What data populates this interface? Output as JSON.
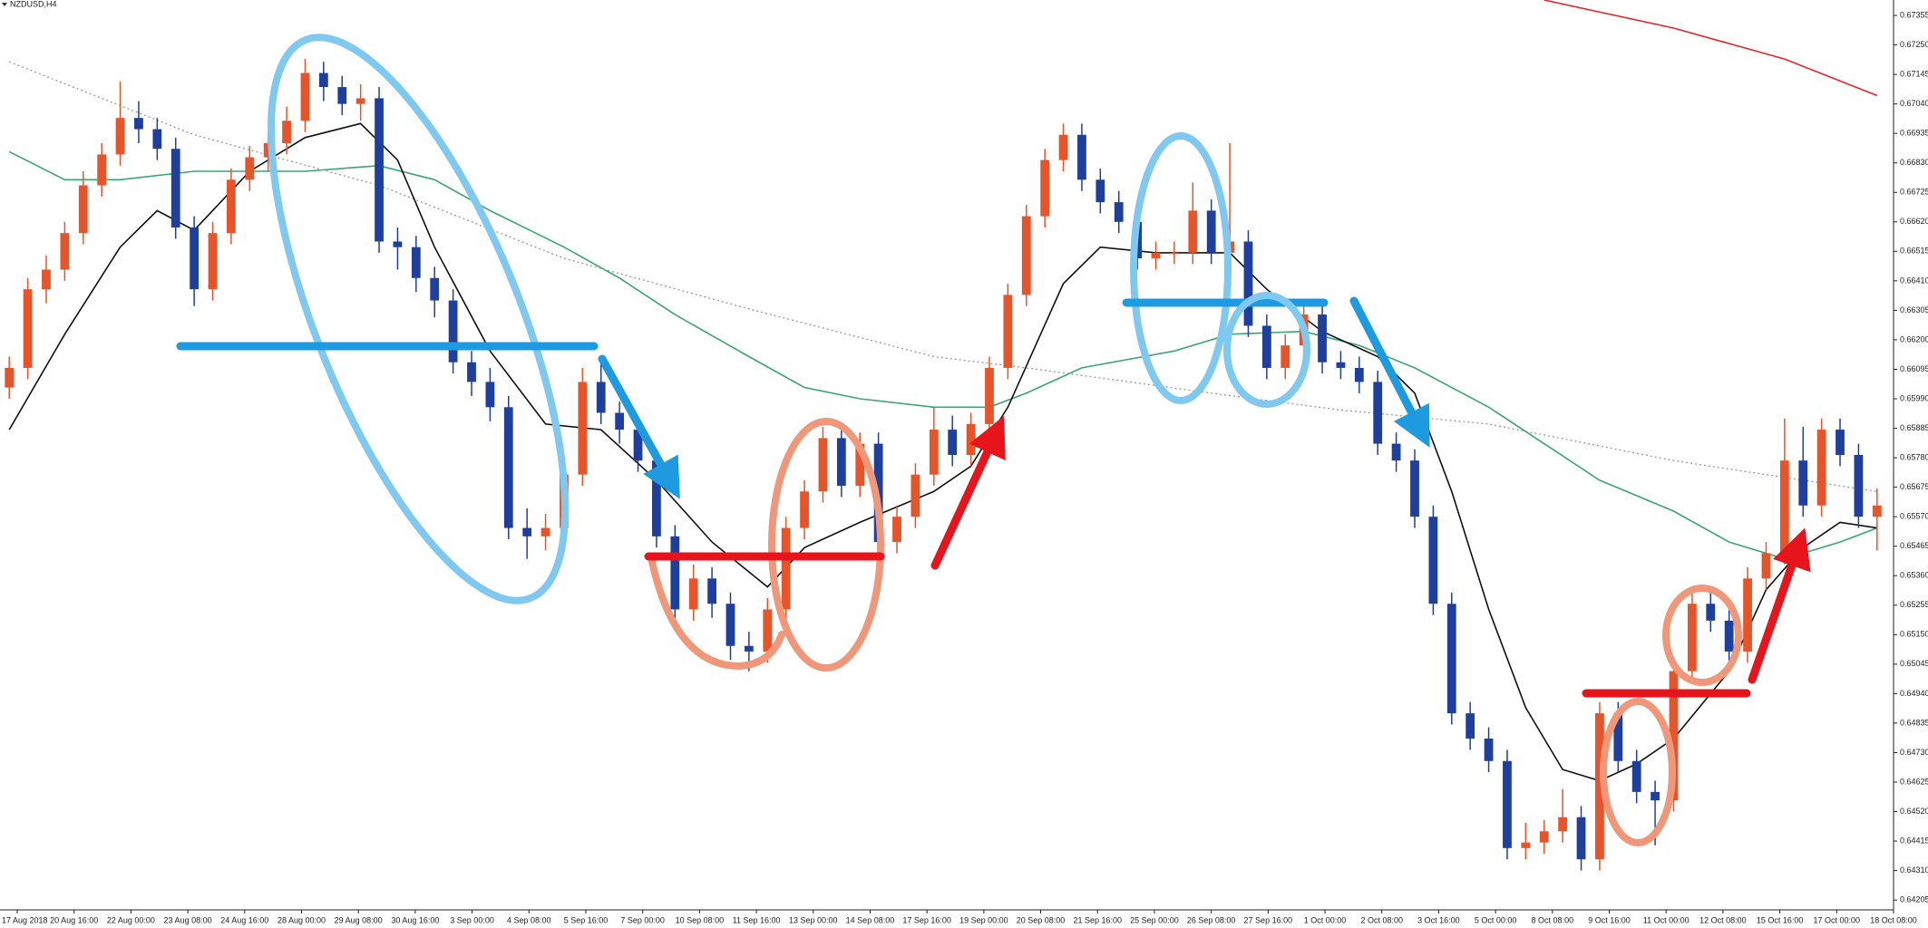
{
  "chart_data": {
    "type": "candlestick",
    "title": "NZDUSD,H4",
    "up_color": "#e8542a",
    "down_color": "#1f3f9e",
    "ylim": [
      0.6417,
      0.6741
    ],
    "yticks": [
      0.67355,
      {
        "value": 0.6725,
        "label": "0.67250"
      },
      0.67145,
      {
        "value": 0.6704,
        "label": "0.67040"
      },
      0.66935,
      {
        "value": 0.6683,
        "label": "0.66830"
      },
      0.66725,
      {
        "value": 0.6662,
        "label": "0.66620"
      },
      0.66515,
      {
        "value": 0.6641,
        "label": "0.66410"
      },
      0.66305,
      {
        "value": 0.662,
        "label": "0.66200"
      },
      0.66095,
      {
        "value": 0.6599,
        "label": "0.65990"
      },
      0.65885,
      {
        "value": 0.6578,
        "label": "0.65780"
      },
      0.65675,
      {
        "value": 0.6557,
        "label": "0.65570"
      },
      0.65465,
      {
        "value": 0.6536,
        "label": "0.65360"
      },
      0.65255,
      {
        "value": 0.6515,
        "label": "0.65150"
      },
      0.65045,
      {
        "value": 0.6494,
        "label": "0.64940"
      },
      0.64835,
      {
        "value": 0.6473,
        "label": "0.64730"
      },
      0.64625,
      {
        "value": 0.6452,
        "label": "0.64520"
      },
      0.64415,
      {
        "value": 0.6431,
        "label": "0.64310"
      },
      0.64205
    ],
    "xlabels": [
      "17 Aug 2018",
      "20 Aug 16:00",
      "22 Aug 00:00",
      "23 Aug 08:00",
      "24 Aug 16:00",
      "28 Aug 00:00",
      "29 Aug 08:00",
      "30 Aug 16:00",
      "3 Sep 00:00",
      "4 Sep 08:00",
      "5 Sep 16:00",
      "7 Sep 00:00",
      "10 Sep 08:00",
      "11 Sep 16:00",
      "13 Sep 00:00",
      "14 Sep 08:00",
      "17 Sep 16:00",
      "19 Sep 00:00",
      "20 Sep 08:00",
      "21 Sep 16:00",
      "25 Sep 00:00",
      "26 Sep 08:00",
      "27 Sep 16:00",
      "1 Oct 00:00",
      "2 Oct 08:00",
      "3 Oct 16:00",
      "5 Oct 00:00",
      "8 Oct 08:00",
      "9 Oct 16:00",
      "11 Oct 00:00",
      "12 Oct 08:00",
      "15 Oct 16:00",
      "17 Oct 00:00",
      "18 Oct 08:00"
    ],
    "candles": [
      [
        0.6603,
        0.6614,
        0.6599,
        0.661
      ],
      [
        0.661,
        0.6642,
        0.6606,
        0.6638
      ],
      [
        0.6638,
        0.665,
        0.6633,
        0.6645
      ],
      [
        0.6645,
        0.6662,
        0.6641,
        0.6658
      ],
      [
        0.6658,
        0.668,
        0.6654,
        0.6675
      ],
      [
        0.6675,
        0.669,
        0.6671,
        0.6686
      ],
      [
        0.6686,
        0.6712,
        0.6682,
        0.6699
      ],
      [
        0.6699,
        0.6705,
        0.669,
        0.6695
      ],
      [
        0.6695,
        0.6699,
        0.6684,
        0.6688
      ],
      [
        0.6688,
        0.6692,
        0.6656,
        0.666
      ],
      [
        0.666,
        0.6664,
        0.6632,
        0.6638
      ],
      [
        0.6638,
        0.6662,
        0.6634,
        0.6658
      ],
      [
        0.6658,
        0.6681,
        0.6654,
        0.6677
      ],
      [
        0.6677,
        0.6689,
        0.6673,
        0.6685
      ],
      [
        0.6685,
        0.6694,
        0.668,
        0.669
      ],
      [
        0.669,
        0.6703,
        0.6686,
        0.6698
      ],
      [
        0.6698,
        0.672,
        0.6694,
        0.6715
      ],
      [
        0.6715,
        0.6719,
        0.6705,
        0.671
      ],
      [
        0.671,
        0.6714,
        0.67,
        0.6704
      ],
      [
        0.6704,
        0.6711,
        0.6698,
        0.6706
      ],
      [
        0.6706,
        0.671,
        0.6651,
        0.6655
      ],
      [
        0.6655,
        0.666,
        0.6645,
        0.6653
      ],
      [
        0.6653,
        0.6657,
        0.6637,
        0.6642
      ],
      [
        0.6642,
        0.6646,
        0.6628,
        0.6634
      ],
      [
        0.6634,
        0.6638,
        0.6608,
        0.6612
      ],
      [
        0.6612,
        0.6616,
        0.66,
        0.6605
      ],
      [
        0.6605,
        0.661,
        0.6591,
        0.6596
      ],
      [
        0.6596,
        0.66,
        0.6549,
        0.6553
      ],
      [
        0.6553,
        0.656,
        0.6542,
        0.655
      ],
      [
        0.655,
        0.6558,
        0.6545,
        0.6553
      ],
      [
        0.6553,
        0.6576,
        0.6549,
        0.6572
      ],
      [
        0.6572,
        0.661,
        0.6568,
        0.6605
      ],
      [
        0.6605,
        0.6612,
        0.659,
        0.6594
      ],
      [
        0.6594,
        0.6598,
        0.6583,
        0.6588
      ],
      [
        0.6588,
        0.6592,
        0.6573,
        0.6577
      ],
      [
        0.6577,
        0.6581,
        0.6546,
        0.655
      ],
      [
        0.655,
        0.6554,
        0.6519,
        0.6524
      ],
      [
        0.6524,
        0.654,
        0.652,
        0.6535
      ],
      [
        0.6535,
        0.6539,
        0.6521,
        0.6526
      ],
      [
        0.6526,
        0.653,
        0.6506,
        0.6511
      ],
      [
        0.6511,
        0.6516,
        0.6502,
        0.6509
      ],
      [
        0.6509,
        0.6528,
        0.6505,
        0.6524
      ],
      [
        0.6524,
        0.6557,
        0.652,
        0.6553
      ],
      [
        0.6553,
        0.657,
        0.6549,
        0.6566
      ],
      [
        0.6566,
        0.6589,
        0.6562,
        0.6585
      ],
      [
        0.6585,
        0.659,
        0.6564,
        0.6568
      ],
      [
        0.6568,
        0.6587,
        0.6564,
        0.6583
      ],
      [
        0.6583,
        0.6587,
        0.6544,
        0.6548
      ],
      [
        0.6548,
        0.6561,
        0.6544,
        0.6557
      ],
      [
        0.6557,
        0.6576,
        0.6553,
        0.6572
      ],
      [
        0.6572,
        0.6596,
        0.6568,
        0.6588
      ],
      [
        0.6588,
        0.6593,
        0.6575,
        0.6579
      ],
      [
        0.6579,
        0.6594,
        0.6575,
        0.659
      ],
      [
        0.659,
        0.6614,
        0.6586,
        0.661
      ],
      [
        0.661,
        0.664,
        0.6606,
        0.6636
      ],
      [
        0.6636,
        0.6668,
        0.6632,
        0.6664
      ],
      [
        0.6664,
        0.6688,
        0.666,
        0.6684
      ],
      [
        0.6684,
        0.6697,
        0.668,
        0.6693
      ],
      [
        0.6693,
        0.6697,
        0.6673,
        0.6677
      ],
      [
        0.6677,
        0.6681,
        0.6665,
        0.6669
      ],
      [
        0.6669,
        0.6673,
        0.6658,
        0.6662
      ],
      [
        0.6662,
        0.6666,
        0.6645,
        0.6649
      ],
      [
        0.6649,
        0.6655,
        0.6645,
        0.6651
      ],
      [
        0.6651,
        0.6655,
        0.6647,
        0.6651
      ],
      [
        0.6651,
        0.6676,
        0.6647,
        0.6666
      ],
      [
        0.6666,
        0.667,
        0.6647,
        0.6651
      ],
      [
        0.6651,
        0.669,
        0.6647,
        0.6655
      ],
      [
        0.6655,
        0.6659,
        0.6621,
        0.6625
      ],
      [
        0.6625,
        0.6629,
        0.6606,
        0.661
      ],
      [
        0.661,
        0.6622,
        0.6606,
        0.6618
      ],
      [
        0.6618,
        0.6633,
        0.6614,
        0.6629
      ],
      [
        0.6629,
        0.6633,
        0.6608,
        0.6612
      ],
      [
        0.6612,
        0.6616,
        0.6606,
        0.661
      ],
      [
        0.661,
        0.6614,
        0.6601,
        0.6605
      ],
      [
        0.6605,
        0.6609,
        0.6579,
        0.6583
      ],
      [
        0.6583,
        0.6587,
        0.6573,
        0.6577
      ],
      [
        0.6577,
        0.6581,
        0.6553,
        0.6557
      ],
      [
        0.6557,
        0.6561,
        0.6522,
        0.6526
      ],
      [
        0.6526,
        0.653,
        0.6483,
        0.6487
      ],
      [
        0.6487,
        0.6491,
        0.6474,
        0.6478
      ],
      [
        0.6478,
        0.6482,
        0.6466,
        0.647
      ],
      [
        0.647,
        0.6474,
        0.6435,
        0.6439
      ],
      [
        0.6439,
        0.6448,
        0.6435,
        0.6441
      ],
      [
        0.6441,
        0.6449,
        0.6437,
        0.6445
      ],
      [
        0.6445,
        0.646,
        0.6441,
        0.645
      ],
      [
        0.645,
        0.6454,
        0.6431,
        0.6435
      ],
      [
        0.6435,
        0.6491,
        0.6431,
        0.6487
      ],
      [
        0.6487,
        0.6491,
        0.6466,
        0.647
      ],
      [
        0.647,
        0.6474,
        0.6455,
        0.6459
      ],
      [
        0.6459,
        0.6463,
        0.644,
        0.6456
      ],
      [
        0.6456,
        0.6506,
        0.6452,
        0.6502
      ],
      [
        0.6502,
        0.653,
        0.6498,
        0.6526
      ],
      [
        0.6526,
        0.653,
        0.6516,
        0.652
      ],
      [
        0.652,
        0.6524,
        0.6505,
        0.6509
      ],
      [
        0.6509,
        0.6539,
        0.6505,
        0.6535
      ],
      [
        0.6535,
        0.6548,
        0.6531,
        0.6544
      ],
      [
        0.6544,
        0.6592,
        0.654,
        0.6577
      ],
      [
        0.6577,
        0.6589,
        0.6557,
        0.6561
      ],
      [
        0.6561,
        0.6592,
        0.6557,
        0.6588
      ],
      [
        0.6588,
        0.6592,
        0.6575,
        0.6579
      ],
      [
        0.6579,
        0.6583,
        0.6553,
        0.6557
      ],
      [
        0.6557,
        0.6567,
        0.6545,
        0.6561
      ]
    ],
    "lines": [
      {
        "color": "#3aa673",
        "dashed": false,
        "x": [
          0,
          3,
          6,
          10,
          13,
          16,
          20,
          23,
          26,
          30,
          33,
          36,
          40,
          43,
          46,
          50,
          53,
          55,
          58,
          63,
          66,
          70,
          73,
          76,
          80,
          83,
          86,
          90,
          93,
          96,
          99,
          101
        ],
        "values": [
          0.6687,
          0.6677,
          0.6677,
          0.668,
          0.668,
          0.668,
          0.6682,
          0.6677,
          0.6666,
          0.6653,
          0.6642,
          0.6629,
          0.6614,
          0.6603,
          0.6599,
          0.6596,
          0.6596,
          0.6601,
          0.661,
          0.6616,
          0.6622,
          0.6623,
          0.6618,
          0.661,
          0.6596,
          0.6583,
          0.657,
          0.6559,
          0.6548,
          0.6542,
          0.6548,
          0.6553
        ]
      },
      {
        "color": "#999999",
        "dashed": true,
        "x": [
          0,
          10,
          20,
          30,
          40,
          50,
          55,
          65,
          72,
          80,
          90,
          101
        ],
        "values": [
          0.6719,
          0.6693,
          0.6675,
          0.6649,
          0.6631,
          0.6614,
          0.661,
          0.6601,
          0.6595,
          0.659,
          0.6577,
          0.6566
        ]
      },
      {
        "color": "#111111",
        "dashed": false,
        "x": [
          0,
          3,
          6,
          8,
          10,
          13,
          16,
          19,
          21,
          23,
          26,
          29,
          32,
          35,
          38,
          41,
          43,
          46,
          50,
          52,
          54,
          57,
          59,
          62,
          66,
          68,
          71,
          74,
          76,
          78,
          80,
          82,
          84,
          86,
          88,
          90,
          93,
          95,
          97,
          99,
          101
        ],
        "values": [
          0.6588,
          0.6622,
          0.6653,
          0.6666,
          0.6659,
          0.668,
          0.6692,
          0.6697,
          0.6684,
          0.6653,
          0.6616,
          0.659,
          0.6588,
          0.657,
          0.6548,
          0.6532,
          0.6546,
          0.6555,
          0.6566,
          0.6575,
          0.6596,
          0.664,
          0.6653,
          0.6651,
          0.6651,
          0.6638,
          0.6623,
          0.6614,
          0.6601,
          0.6566,
          0.6524,
          0.6489,
          0.6467,
          0.6463,
          0.6469,
          0.6478,
          0.6502,
          0.6531,
          0.6546,
          0.6555,
          0.6553
        ]
      },
      {
        "color": "#e8262a",
        "dashed": false,
        "x": [
          83,
          90,
          96,
          101
        ],
        "values": [
          0.6741,
          0.6731,
          0.672,
          0.6707
        ]
      }
    ]
  }
}
